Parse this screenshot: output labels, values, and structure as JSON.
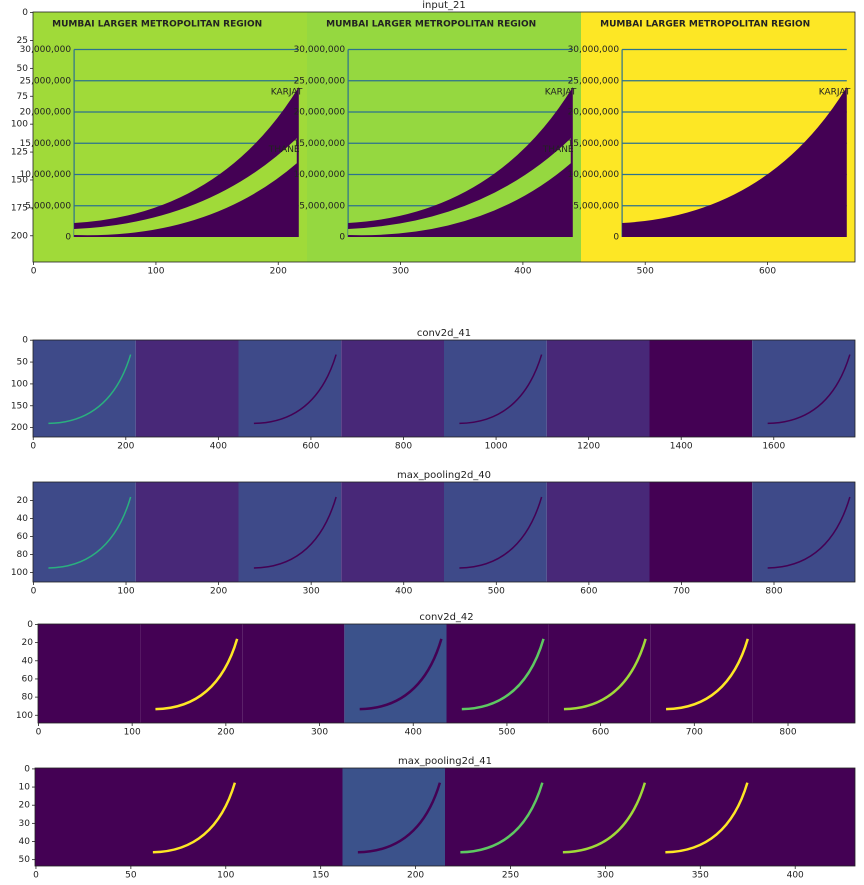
{
  "chart_data": [
    {
      "type": "image",
      "title": "input_21",
      "xlim": [
        -0.5,
        671.5
      ],
      "ylim": [
        223.5,
        -0.5
      ],
      "xticks": [
        0,
        100,
        200,
        300,
        400,
        500,
        600
      ],
      "yticks": [
        0,
        25,
        50,
        75,
        100,
        125,
        150,
        175,
        200
      ],
      "image_text": {
        "heading": "MUMBAI LARGER METROPOLITAN REGION",
        "scale": [
          "0",
          "5,000,000",
          "10,000,000",
          "15,000,000",
          "20,000,000",
          "25,000,000",
          "30,000,000"
        ],
        "labels": [
          "KARJAT",
          "THANE"
        ]
      }
    },
    {
      "type": "image",
      "title": "conv2d_41",
      "xlim": [
        -0.5,
        1775.5
      ],
      "ylim": [
        221.5,
        -0.5
      ],
      "xticks": [
        0,
        200,
        400,
        600,
        800,
        1000,
        1200,
        1400,
        1600
      ],
      "yticks": [
        0,
        50,
        100,
        150,
        200
      ]
    },
    {
      "type": "image",
      "title": "max_pooling2d_40",
      "xlim": [
        -0.5,
        887.5
      ],
      "ylim": [
        110.5,
        -0.5
      ],
      "xticks": [
        0,
        100,
        200,
        300,
        400,
        500,
        600,
        700,
        800
      ],
      "yticks": [
        20,
        40,
        60,
        80,
        100
      ]
    },
    {
      "type": "image",
      "title": "conv2d_42",
      "xlim": [
        -0.5,
        871.5
      ],
      "ylim": [
        108.5,
        -0.5
      ],
      "xticks": [
        0,
        100,
        200,
        300,
        400,
        500,
        600,
        700,
        800
      ],
      "yticks": [
        0,
        20,
        40,
        60,
        80,
        100
      ]
    },
    {
      "type": "image",
      "title": "max_pooling2d_41",
      "xlim": [
        -0.5,
        431.5
      ],
      "ylim": [
        53.5,
        -0.5
      ],
      "xticks": [
        0,
        50,
        100,
        150,
        200,
        250,
        300,
        350,
        400
      ],
      "yticks": [
        0,
        10,
        20,
        30,
        40,
        50
      ]
    }
  ]
}
